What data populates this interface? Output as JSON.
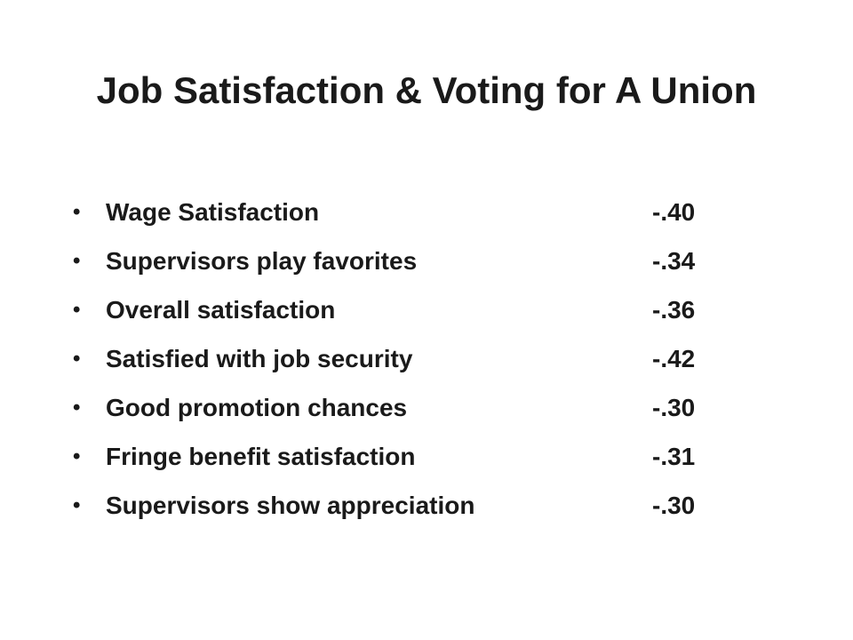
{
  "slide": {
    "title": "Job Satisfaction & Voting for A Union",
    "items": [
      {
        "label": "Wage Satisfaction",
        "value": "-.40"
      },
      {
        "label": "Supervisors play favorites",
        "value": "-.34"
      },
      {
        "label": "Overall satisfaction",
        "value": "-.36"
      },
      {
        "label": "Satisfied with job security",
        "value": "-.42"
      },
      {
        "label": "Good promotion chances",
        "value": "-.30"
      },
      {
        "label": "Fringe benefit satisfaction",
        "value": "-.31"
      },
      {
        "label": "Supervisors show appreciation",
        "value": "-.30"
      }
    ],
    "bullet_glyph": "•"
  }
}
